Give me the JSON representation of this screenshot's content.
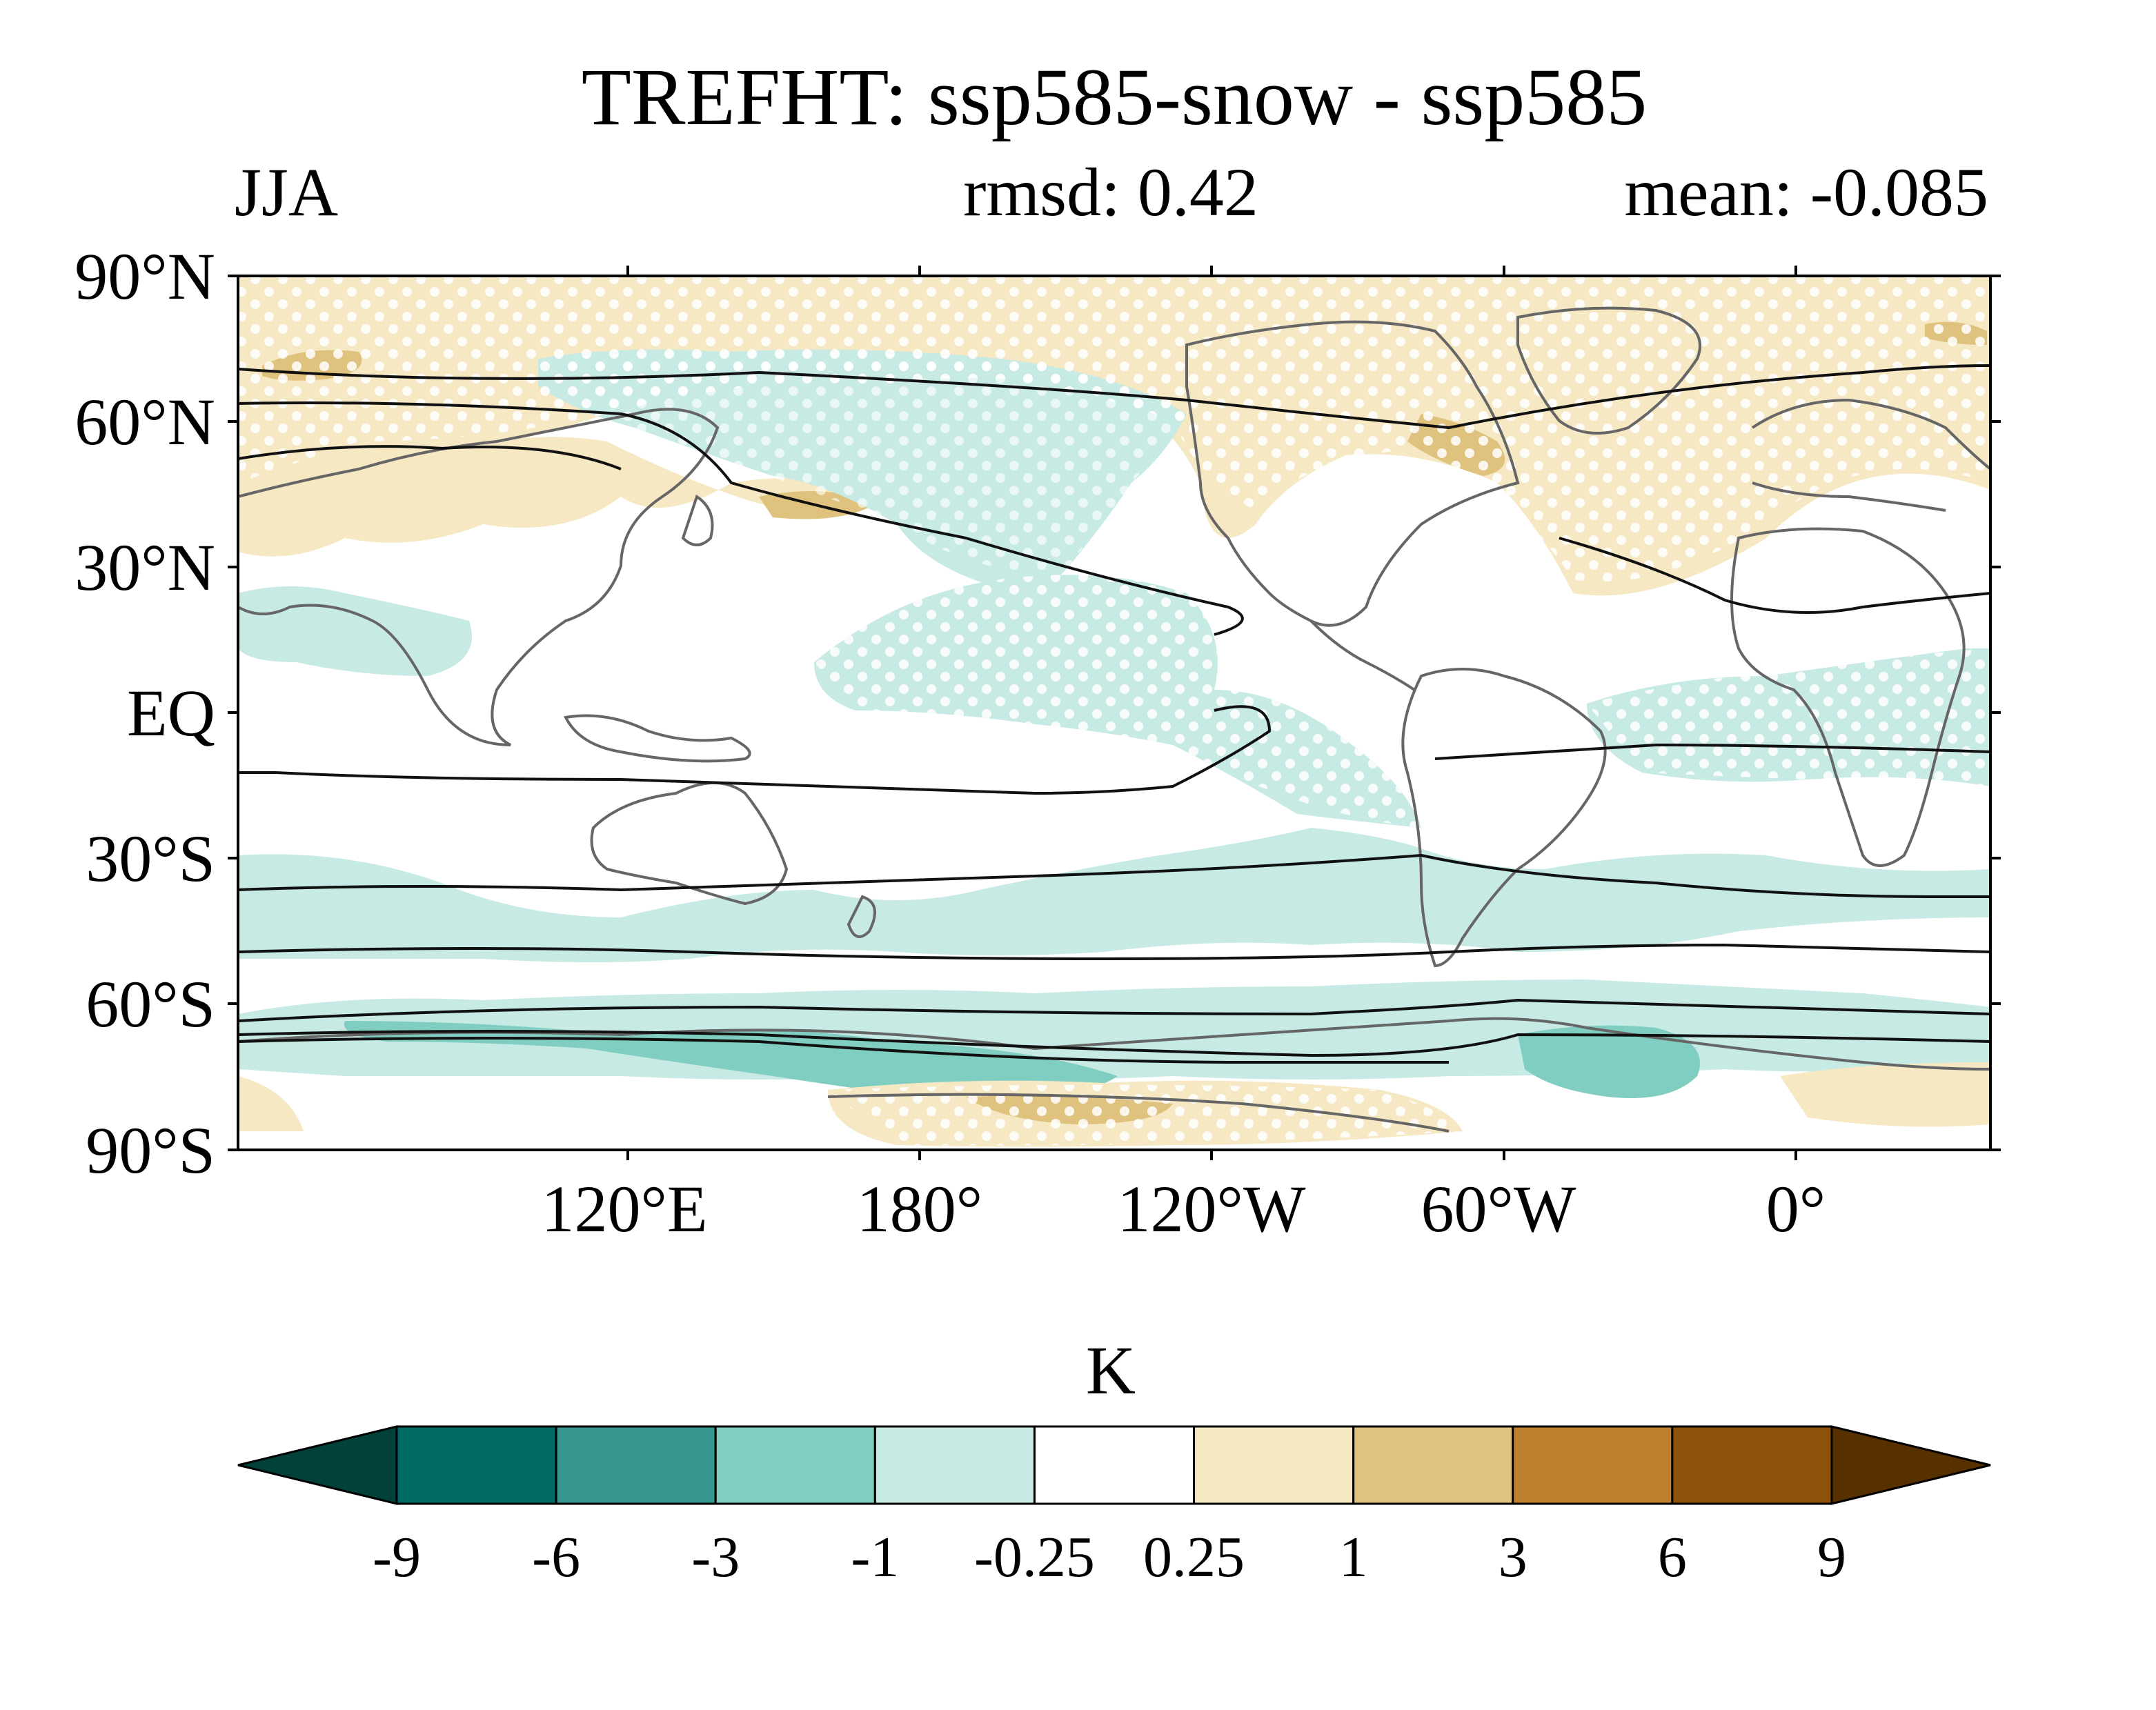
{
  "title": "TREFHT: ssp585-snow - ssp585",
  "season": "JJA",
  "rmsd_text": "rmsd: 0.42",
  "mean_text": "mean: -0.085",
  "map": {
    "lat_labels": [
      "90°N",
      "60°N",
      "30°N",
      "EQ",
      "30°S",
      "60°S",
      "90°S"
    ],
    "lon_labels": [
      "120°E",
      "180°",
      "120°W",
      "60°W",
      "0°"
    ],
    "central_longitude": 200,
    "stippling": "significant regions marked with white dots",
    "contours": "black contour lines of climatological field"
  },
  "colorbar": {
    "unit": "K",
    "levels": [
      "-9",
      "-6",
      "-3",
      "-1",
      "-0.25",
      "0.25",
      "1",
      "3",
      "6",
      "9"
    ],
    "colors": [
      "#01413a",
      "#006b62",
      "#35978f",
      "#80cdc1",
      "#c7eae5",
      "#ffffff",
      "#f6e8c3",
      "#dfc27d",
      "#bf812d",
      "#8c510a",
      "#573000"
    ]
  },
  "colors": {
    "land_outline": "#666666",
    "contour": "#111111",
    "cool_light": "#c7eae5",
    "cool_mid": "#80cdc1",
    "warm_light": "#f6e8c3",
    "warm_mid": "#dfc27d"
  }
}
